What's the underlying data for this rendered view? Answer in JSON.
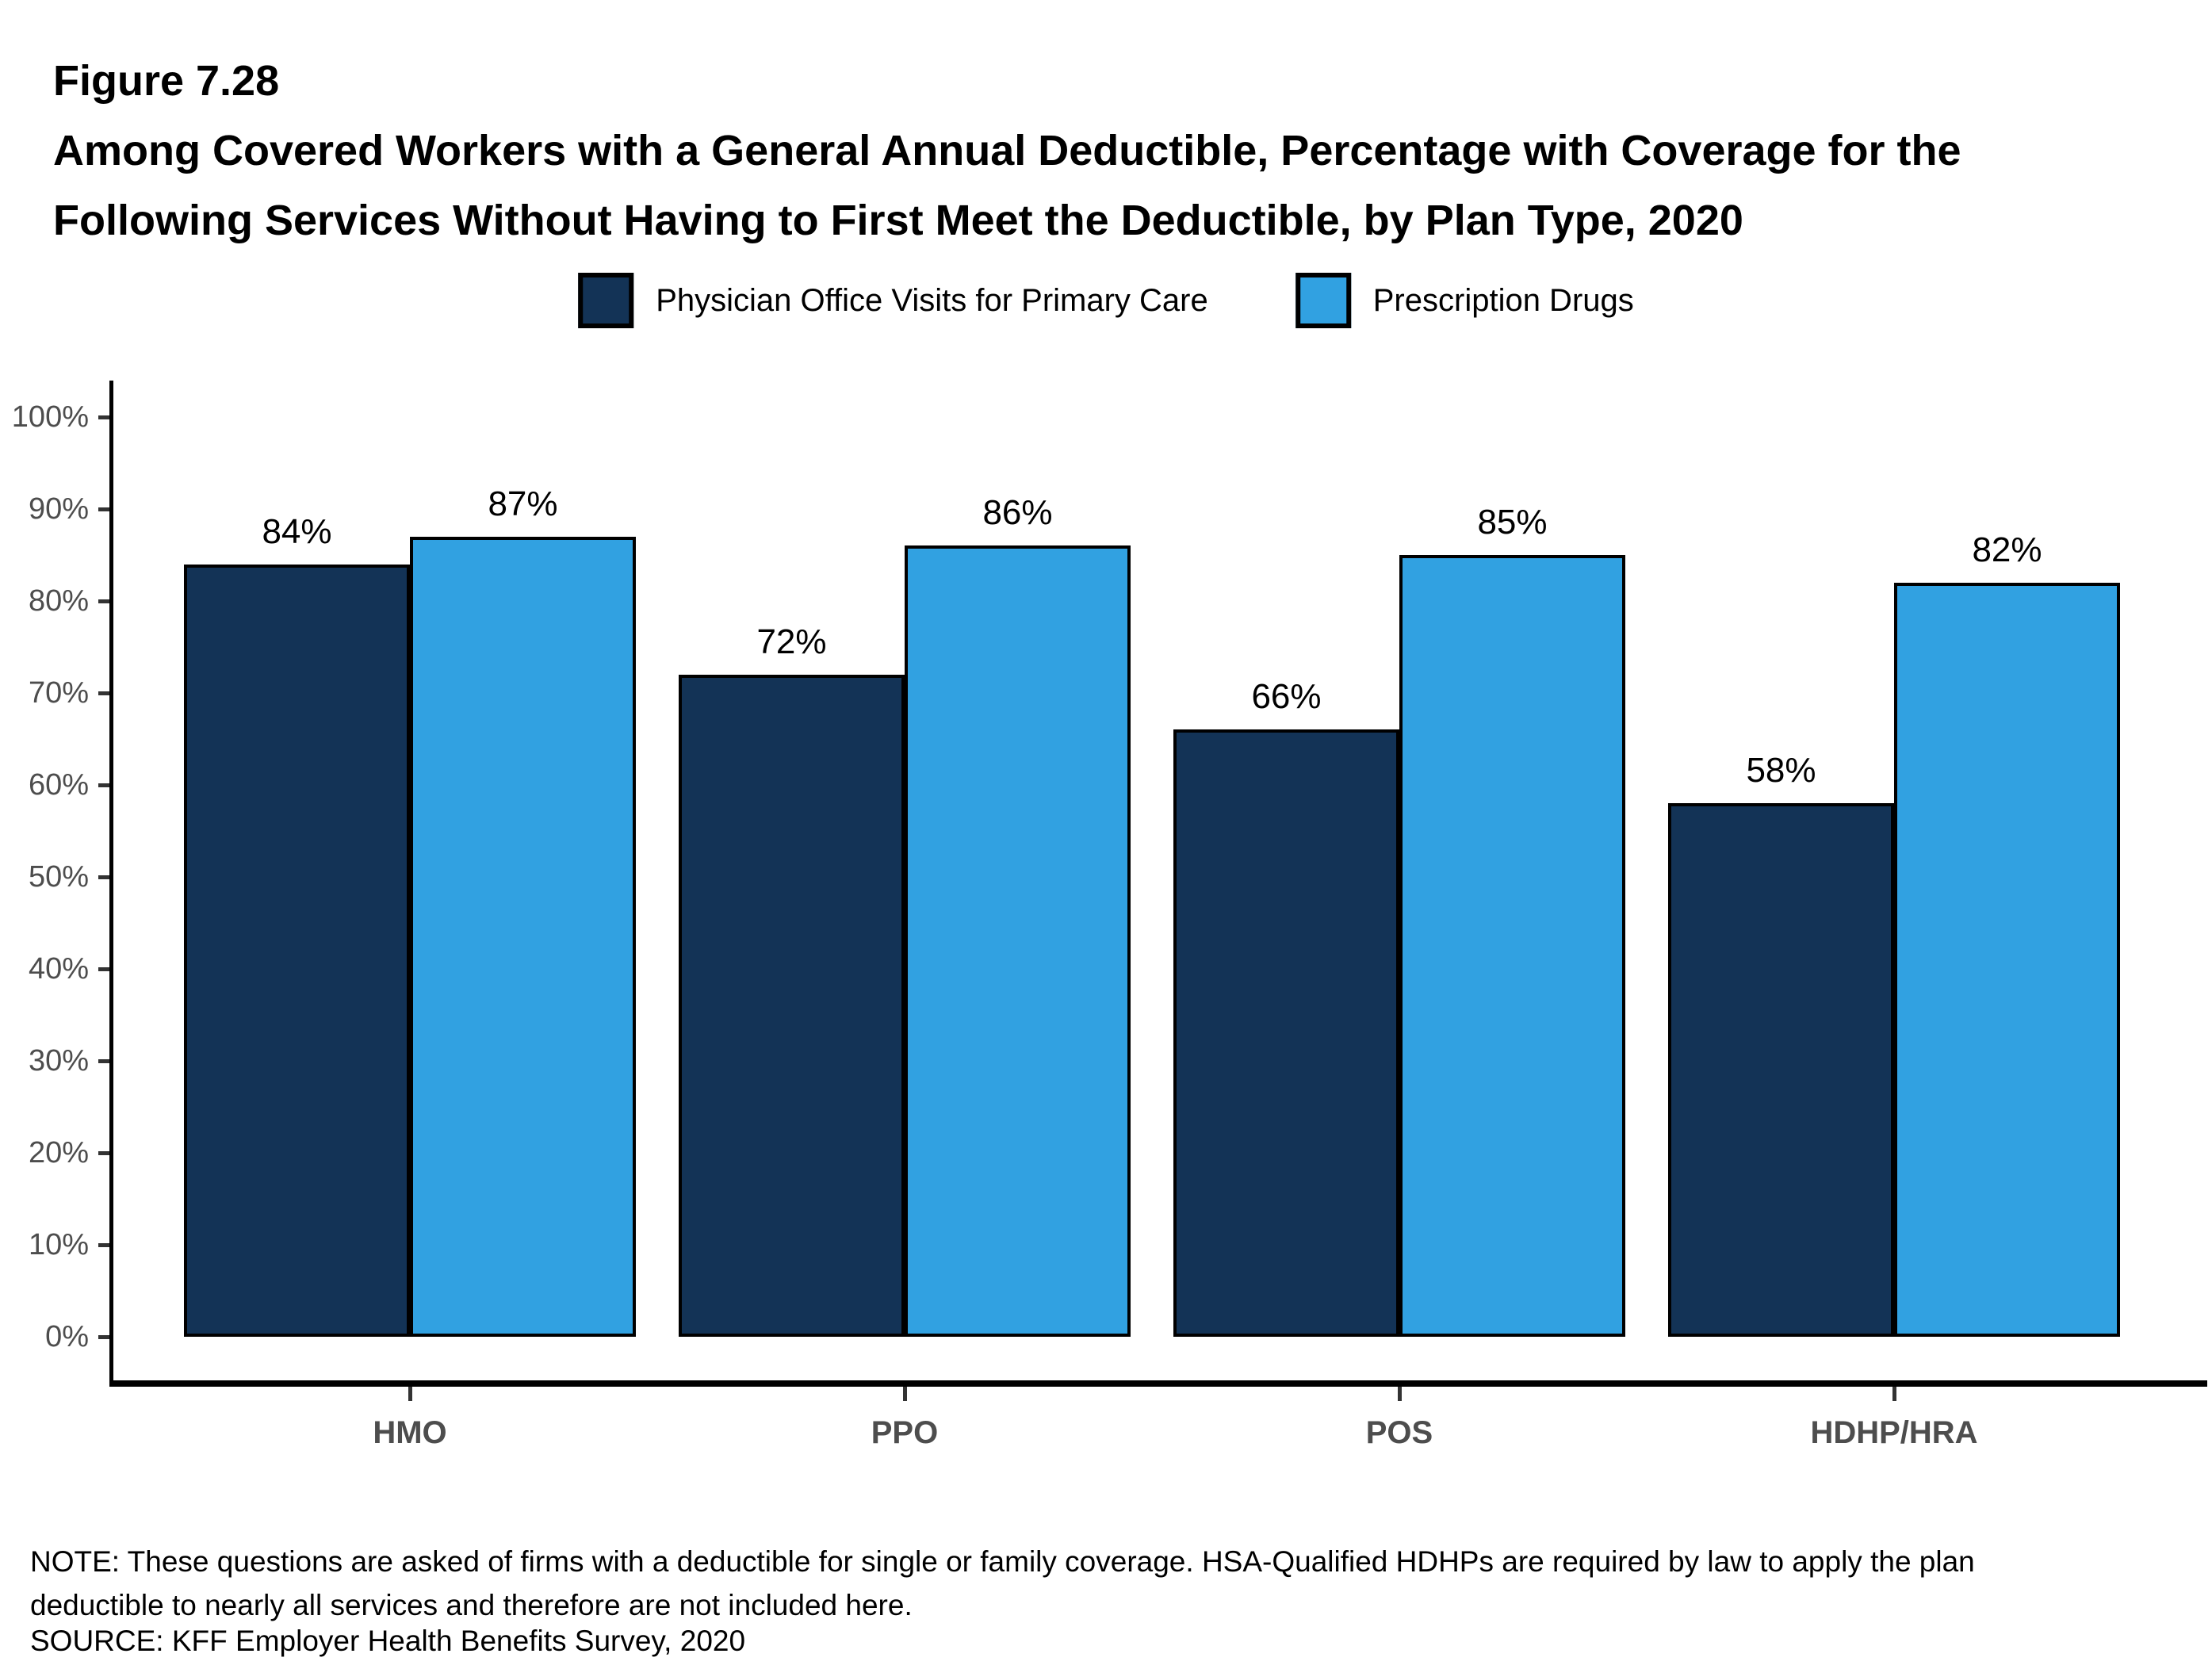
{
  "figure": {
    "number": "Figure 7.28",
    "title_lines": [
      "Among Covered Workers with a General Annual Deductible, Percentage with Coverage for the",
      "Following Services Without Having to First Meet the Deductible, by Plan Type, 2020"
    ]
  },
  "legend": {
    "items": [
      {
        "label": "Physician Office Visits for Primary Care",
        "color": "#133356"
      },
      {
        "label": "Prescription Drugs",
        "color": "#31A1E1"
      }
    ]
  },
  "chart_data": {
    "type": "bar",
    "title": "Among Covered Workers with a General Annual Deductible, Percentage with Coverage for the Following Services Without Having to First Meet the Deductible, by Plan Type, 2020",
    "categories": [
      "HMO",
      "PPO",
      "POS",
      "HDHP/HRA"
    ],
    "series": [
      {
        "name": "Physician Office Visits for Primary Care",
        "color": "#133356",
        "values": [
          84,
          72,
          66,
          58
        ]
      },
      {
        "name": "Prescription Drugs",
        "color": "#31A1E1",
        "values": [
          87,
          86,
          85,
          82
        ]
      }
    ],
    "data_label_suffix": "%",
    "xlabel": "",
    "ylabel": "",
    "ylim": [
      0,
      100
    ],
    "y_tick_step": 10,
    "y_tick_labels": [
      "0%",
      "10%",
      "20%",
      "30%",
      "40%",
      "50%",
      "60%",
      "70%",
      "80%",
      "90%",
      "100%"
    ],
    "grid": false,
    "legend_position": "top",
    "colors": {
      "axis_line": "#000000",
      "tick_mark": "#333333",
      "axis_text": "#4d4d4d",
      "data_label": "#000000"
    }
  },
  "note": {
    "lines": [
      "NOTE: These questions are asked of firms with a deductible for single or family coverage. HSA-Qualified HDHPs are required by law to apply the plan",
      "deductible to nearly all services and therefore are not included here."
    ]
  },
  "source": {
    "text": "SOURCE: KFF Employer Health Benefits Survey, 2020"
  }
}
